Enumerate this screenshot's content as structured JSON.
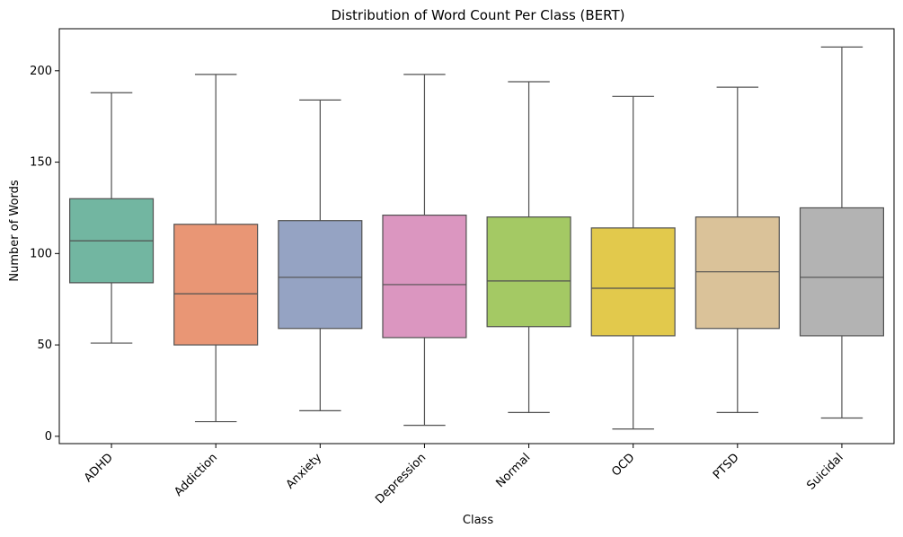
{
  "chart_data": {
    "type": "box",
    "title": "Distribution of Word Count Per Class (BERT)",
    "xlabel": "Class",
    "ylabel": "Number of Words",
    "ylim": [
      -4,
      223
    ],
    "yticks": [
      0,
      50,
      100,
      150,
      200
    ],
    "grid": false,
    "categories": [
      "ADHD",
      "Addiction",
      "Anxiety",
      "Depression",
      "Normal",
      "OCD",
      "PTSD",
      "Suicidal"
    ],
    "colors": [
      "#72b6a1",
      "#e99675",
      "#95a3c3",
      "#db96c0",
      "#a4c964",
      "#e2c94c",
      "#dac299",
      "#b3b3b3"
    ],
    "boxes": [
      {
        "category": "ADHD",
        "min": 51,
        "q1": 84,
        "median": 107,
        "q3": 130,
        "max": 188
      },
      {
        "category": "Addiction",
        "min": 8,
        "q1": 50,
        "median": 78,
        "q3": 116,
        "max": 198
      },
      {
        "category": "Anxiety",
        "min": 14,
        "q1": 59,
        "median": 87,
        "q3": 118,
        "max": 184
      },
      {
        "category": "Depression",
        "min": 6,
        "q1": 54,
        "median": 83,
        "q3": 121,
        "max": 198
      },
      {
        "category": "Normal",
        "min": 13,
        "q1": 60,
        "median": 85,
        "q3": 120,
        "max": 194
      },
      {
        "category": "OCD",
        "min": 4,
        "q1": 55,
        "median": 81,
        "q3": 114,
        "max": 186
      },
      {
        "category": "PTSD",
        "min": 13,
        "q1": 59,
        "median": 90,
        "q3": 120,
        "max": 191
      },
      {
        "category": "Suicidal",
        "min": 10,
        "q1": 55,
        "median": 87,
        "q3": 125,
        "max": 213
      }
    ]
  }
}
